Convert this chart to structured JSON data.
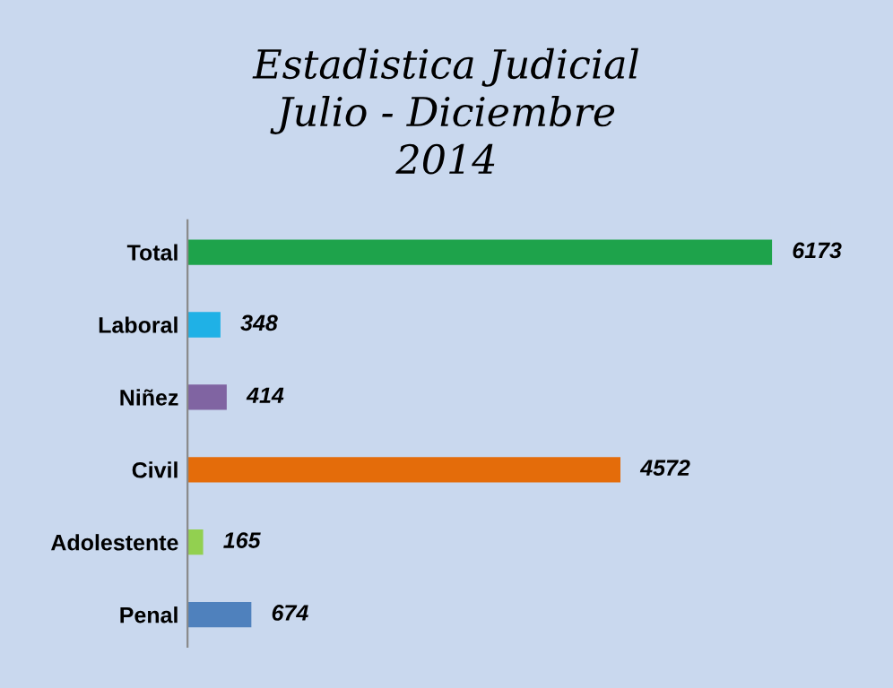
{
  "chart_data": {
    "type": "bar",
    "orientation": "horizontal",
    "title": "Estadistica Judicial\nJulio - Diciembre\n2014",
    "categories": [
      "Total",
      "Laboral",
      "Niñez",
      "Civil",
      "Adolestente",
      "Penal"
    ],
    "values": [
      6173,
      348,
      414,
      4572,
      165,
      674
    ],
    "colors": [
      "#1ea34b",
      "#1fb1e6",
      "#8064a2",
      "#e46c0a",
      "#92d050",
      "#4f81bd"
    ],
    "data_labels": true,
    "grid": false,
    "legend": false
  }
}
